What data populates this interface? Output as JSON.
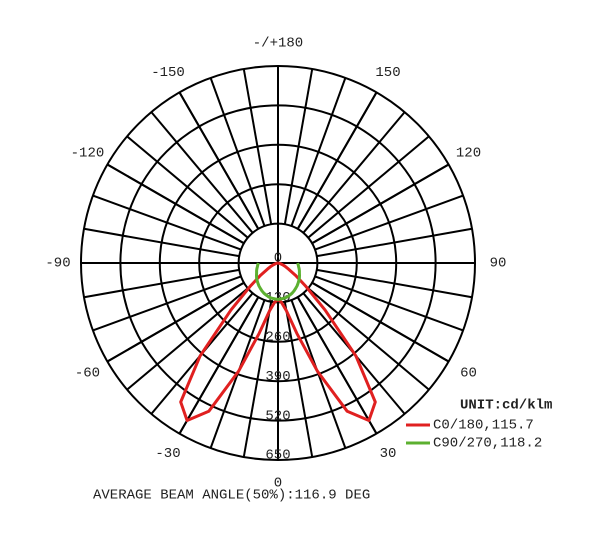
{
  "chart_data": {
    "type": "polar",
    "angles": [
      -90,
      -85,
      -80,
      -75,
      -70,
      -65,
      -60,
      -55,
      -50,
      -45,
      -40,
      -35,
      -30,
      -25,
      -20,
      -15,
      -10,
      -5,
      0,
      5,
      10,
      15,
      20,
      25,
      30,
      35,
      40,
      45,
      50,
      55,
      60,
      65,
      70,
      75,
      80,
      85,
      90
    ],
    "series": [
      {
        "name": "C0/180,115.7",
        "color": "#e02020",
        "values": [
          0,
          2,
          4,
          8,
          15,
          25,
          40,
          70,
          120,
          220,
          400,
          560,
          600,
          540,
          380,
          240,
          160,
          130,
          120,
          130,
          160,
          240,
          380,
          540,
          600,
          560,
          400,
          220,
          120,
          70,
          40,
          25,
          15,
          8,
          4,
          2,
          0
        ]
      },
      {
        "name": "C90/270,118.2",
        "color": "#5cb030",
        "values": [
          65,
          67,
          69,
          72,
          75,
          78,
          82,
          86,
          90,
          94,
          98,
          102,
          106,
          110,
          113,
          116,
          118,
          119,
          120,
          119,
          118,
          116,
          113,
          110,
          106,
          102,
          98,
          94,
          90,
          86,
          82,
          78,
          75,
          72,
          69,
          67,
          65
        ]
      }
    ],
    "rlim": [
      0,
      650
    ],
    "rticks": [
      0,
      130,
      260,
      390,
      520,
      650
    ],
    "angle_ticks": [
      {
        "value": 180,
        "label": "-/+180"
      },
      150,
      120,
      90,
      60,
      30,
      0,
      -30,
      -60,
      -90,
      -120,
      -150
    ],
    "unit": "UNIT:cd/klm",
    "footer": "AVERAGE BEAM ANGLE(50%):116.9 DEG"
  }
}
